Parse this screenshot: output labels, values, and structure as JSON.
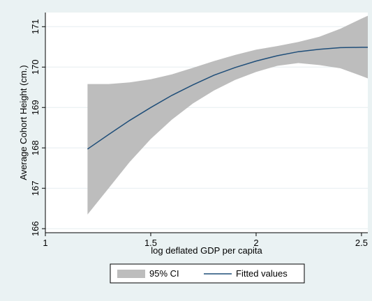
{
  "chart_data": {
    "type": "line",
    "title": "",
    "xlabel": "log deflated GDP per capita",
    "ylabel": "Average Cohort Height (cm.)",
    "xlim": [
      1.0,
      2.53
    ],
    "ylim": [
      165.9,
      171.35
    ],
    "xticks": [
      {
        "value": 1,
        "label": "1"
      },
      {
        "value": 1.5,
        "label": "1.5"
      },
      {
        "value": 2,
        "label": "2"
      },
      {
        "value": 2.5,
        "label": "2.5"
      }
    ],
    "yticks": [
      {
        "value": 166,
        "label": "166"
      },
      {
        "value": 167,
        "label": "167"
      },
      {
        "value": 168,
        "label": "168"
      },
      {
        "value": 169,
        "label": "169"
      },
      {
        "value": 170,
        "label": "170"
      },
      {
        "value": 171,
        "label": "171"
      }
    ],
    "grid": "horizontal",
    "legend_position": "bottom",
    "series": [
      {
        "name": "95% CI",
        "kind": "band",
        "color": "#bdbdbd",
        "x": [
          1.2,
          1.3,
          1.4,
          1.5,
          1.6,
          1.7,
          1.8,
          1.9,
          2.0,
          2.1,
          2.2,
          2.3,
          2.4,
          2.5,
          2.53
        ],
        "upper": [
          169.58,
          169.58,
          169.62,
          169.7,
          169.82,
          169.98,
          170.15,
          170.3,
          170.43,
          170.52,
          170.62,
          170.75,
          170.95,
          171.2,
          171.27
        ],
        "lower": [
          166.35,
          167.0,
          167.65,
          168.22,
          168.7,
          169.1,
          169.42,
          169.68,
          169.88,
          170.03,
          170.1,
          170.05,
          169.97,
          169.78,
          169.72
        ]
      },
      {
        "name": "Fitted values",
        "kind": "line",
        "color": "#1f4e79",
        "x": [
          1.2,
          1.3,
          1.4,
          1.5,
          1.6,
          1.7,
          1.8,
          1.9,
          2.0,
          2.1,
          2.2,
          2.3,
          2.4,
          2.5,
          2.53
        ],
        "y": [
          167.97,
          168.33,
          168.68,
          169.0,
          169.3,
          169.56,
          169.8,
          169.99,
          170.15,
          170.28,
          170.38,
          170.44,
          170.48,
          170.49,
          170.49
        ]
      }
    ]
  }
}
